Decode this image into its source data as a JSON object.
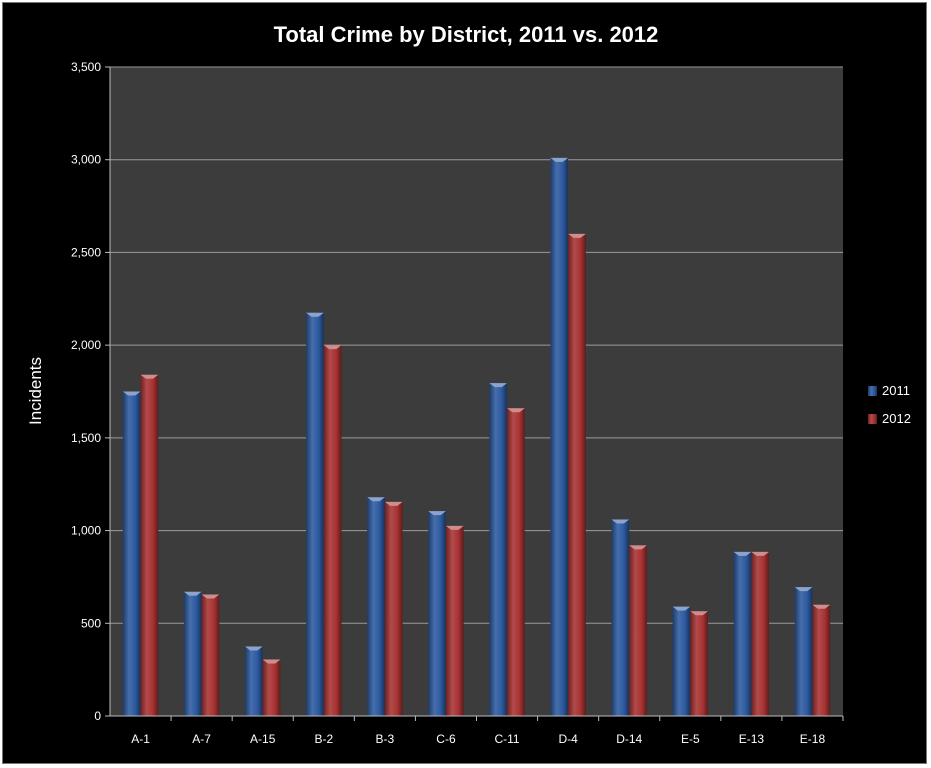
{
  "chart_data": {
    "type": "bar",
    "title": "Total Crime by District, 2011 vs. 2012",
    "xlabel": "",
    "ylabel": "Incidents",
    "categories": [
      "A-1",
      "A-7",
      "A-15",
      "B-2",
      "B-3",
      "C-6",
      "C-11",
      "D-4",
      "D-14",
      "E-5",
      "E-13",
      "E-18"
    ],
    "series": [
      {
        "name": "2011",
        "color": "#2d5aa0",
        "values": [
          1750,
          670,
          375,
          2175,
          1180,
          1105,
          1795,
          3010,
          1060,
          590,
          885,
          695
        ]
      },
      {
        "name": "2012",
        "color": "#a83232",
        "values": [
          1840,
          655,
          305,
          2000,
          1155,
          1025,
          1660,
          2600,
          920,
          565,
          885,
          600
        ]
      }
    ],
    "ylim": [
      0,
      3500
    ],
    "yticks": [
      0,
      500,
      1000,
      1500,
      2000,
      2500,
      3000,
      3500
    ],
    "ytick_labels": [
      "0",
      "500",
      "1,000",
      "1,500",
      "2,000",
      "2,500",
      "3,000",
      "3,500"
    ],
    "grid": true,
    "legend_position": "right",
    "plot_background": "#3c3c3c",
    "background": "#000000"
  }
}
